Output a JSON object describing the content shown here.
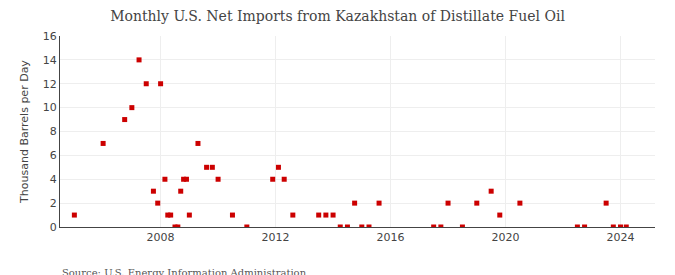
{
  "chart_data": {
    "type": "scatter",
    "title": "Monthly U.S. Net Imports from Kazakhstan of Distillate Fuel Oil",
    "ylabel": "Thousand Barrels per Day",
    "source": "Source: U.S. Energy Information Administration",
    "color": "#cc0000",
    "marker": "square",
    "grid": true,
    "xlim": [
      2004.5,
      2025.2
    ],
    "xticks": [
      2008,
      2012,
      2016,
      2020,
      2024
    ],
    "ylim": [
      0,
      16
    ],
    "yticks": [
      0,
      2,
      4,
      6,
      8,
      10,
      12,
      14,
      16
    ],
    "x": [
      2005.0,
      2006.0,
      2006.75,
      2007.0,
      2007.25,
      2007.5,
      2007.75,
      2007.9,
      2008.0,
      2008.15,
      2008.25,
      2008.35,
      2008.5,
      2008.6,
      2008.7,
      2008.8,
      2008.9,
      2009.0,
      2009.3,
      2009.6,
      2009.8,
      2010.0,
      2010.5,
      2011.0,
      2011.9,
      2012.1,
      2012.3,
      2012.6,
      2013.5,
      2013.75,
      2014.0,
      2014.25,
      2014.5,
      2014.75,
      2015.0,
      2015.25,
      2015.6,
      2017.5,
      2017.75,
      2018.0,
      2018.5,
      2019.0,
      2019.5,
      2019.8,
      2020.5,
      2022.5,
      2022.75,
      2023.5,
      2023.75,
      2024.0,
      2024.2
    ],
    "values": [
      1,
      7,
      9,
      10,
      14,
      12,
      3,
      2,
      12,
      4,
      1,
      1,
      0,
      0,
      3,
      4,
      4,
      1,
      7,
      5,
      5,
      4,
      1,
      0,
      4,
      5,
      4,
      1,
      1,
      1,
      1,
      0,
      0,
      2,
      0,
      0,
      2,
      0,
      0,
      2,
      0,
      2,
      3,
      1,
      2,
      0,
      0,
      2,
      0,
      0,
      0
    ]
  }
}
